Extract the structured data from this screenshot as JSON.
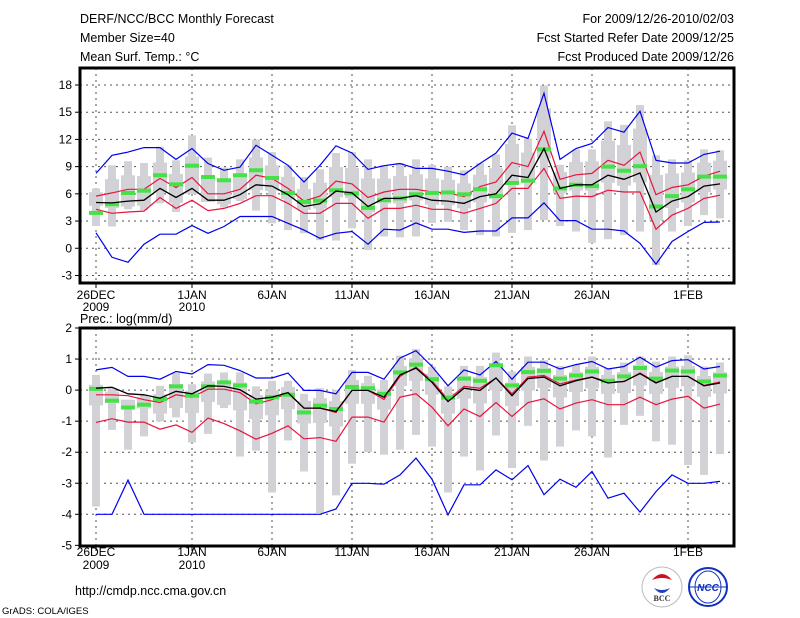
{
  "header": {
    "title": "DERF/NCC/BCC Monthly Forecast",
    "member_size": "Member Size=40",
    "variable": "Mean Surf. Temp.: °C",
    "period": "For 2009/12/26-2010/02/03",
    "start_date": "Fcst Started Refer Date 2009/12/25",
    "produced_date": "Fcst Produced Date 2009/12/26"
  },
  "footer": {
    "url": "http://cmdp.ncc.cma.gov.cn",
    "credit": "GrADS: COLA/IGES",
    "logo_bcc": "BCC",
    "logo_ncc": "NCC"
  },
  "colors": {
    "box": "#d2d2d6",
    "median": "#44e244",
    "mean": "#000000",
    "spread": "#e8143c",
    "extreme": "#0000ee"
  },
  "chart_data": [
    {
      "type": "line",
      "title": "Mean Surf. Temp.: °C",
      "ylabel": "°C",
      "ylim": [
        -4.5,
        19.5
      ],
      "yticks": [
        18,
        15,
        12,
        9,
        6,
        3,
        0,
        -3
      ],
      "xticks": [
        {
          "day": 0,
          "label": "26DEC",
          "sub": "2009"
        },
        {
          "day": 6,
          "label": "1JAN",
          "sub": "2010"
        },
        {
          "day": 11,
          "label": "6JAN",
          "sub": ""
        },
        {
          "day": 16,
          "label": "11JAN",
          "sub": ""
        },
        {
          "day": 21,
          "label": "16JAN",
          "sub": ""
        },
        {
          "day": 26,
          "label": "21JAN",
          "sub": ""
        },
        {
          "day": 31,
          "label": "26JAN",
          "sub": ""
        },
        {
          "day": 37,
          "label": "1FEB",
          "sub": ""
        }
      ],
      "grid": true,
      "series": {
        "mean": [
          5.05,
          5.0,
          5.2,
          5.3,
          6.6,
          5.6,
          6.6,
          5.3,
          5.3,
          5.9,
          7.0,
          6.85,
          5.9,
          4.6,
          4.9,
          6.3,
          6.1,
          4.6,
          5.5,
          5.5,
          5.8,
          5.3,
          5.2,
          4.95,
          5.7,
          6.0,
          8.05,
          7.8,
          11.0,
          6.6,
          7.0,
          7.0,
          8.05,
          7.6,
          8.3,
          4.0,
          5.2,
          5.7,
          6.85,
          7.1
        ],
        "upper": [
          5.75,
          6.1,
          6.5,
          6.5,
          7.7,
          6.7,
          7.8,
          6.0,
          6.0,
          6.5,
          8.05,
          7.7,
          6.6,
          5.2,
          5.75,
          7.4,
          7.1,
          5.6,
          6.2,
          6.5,
          6.5,
          6.2,
          6.1,
          5.7,
          6.8,
          7.3,
          9.45,
          9.0,
          12.9,
          7.6,
          8.1,
          8.25,
          9.7,
          9.15,
          10.6,
          5.9,
          6.7,
          7.0,
          7.95,
          8.5
        ],
        "lower": [
          4.3,
          3.85,
          4.0,
          4.1,
          5.6,
          4.4,
          5.3,
          4.15,
          4.4,
          4.95,
          5.8,
          5.8,
          4.95,
          3.85,
          3.85,
          4.95,
          4.95,
          3.3,
          4.4,
          4.4,
          4.75,
          4.3,
          4.3,
          3.85,
          4.4,
          4.95,
          6.6,
          6.6,
          8.8,
          5.5,
          5.75,
          5.7,
          6.4,
          6.2,
          6.2,
          2.1,
          3.65,
          4.4,
          5.5,
          5.85
        ],
        "max": [
          8.25,
          10.25,
          10.6,
          11.1,
          11.1,
          9.8,
          11.0,
          9.35,
          8.6,
          8.95,
          11.35,
          10.25,
          9.15,
          7.3,
          9.15,
          11.3,
          10.5,
          8.7,
          9.1,
          9.35,
          8.8,
          8.8,
          8.5,
          8.1,
          9.35,
          10.5,
          12.7,
          12.1,
          17.1,
          9.8,
          11.0,
          11.55,
          13.3,
          12.8,
          15.1,
          9.7,
          9.4,
          9.4,
          10.35,
          10.7
        ],
        "min": [
          1.7,
          -1.0,
          -1.55,
          0.45,
          1.55,
          1.55,
          2.5,
          1.65,
          2.4,
          3.5,
          3.5,
          3.5,
          2.75,
          2.0,
          1.1,
          1.65,
          1.85,
          0.45,
          2.1,
          2.0,
          2.8,
          2.1,
          2.1,
          1.75,
          1.9,
          1.9,
          3.35,
          3.35,
          5.0,
          3.05,
          3.05,
          2.1,
          2.1,
          1.9,
          0.55,
          -1.75,
          0.75,
          1.85,
          2.85,
          2.9
        ],
        "median": [
          3.9,
          4.85,
          6.1,
          6.35,
          8.05,
          7.05,
          9.1,
          7.85,
          7.5,
          8.05,
          8.6,
          7.75,
          6.1,
          5.1,
          5.25,
          6.4,
          6.05,
          4.45,
          5.3,
          5.5,
          5.95,
          6.1,
          6.15,
          5.95,
          6.5,
          5.75,
          7.2,
          7.45,
          10.9,
          6.6,
          7.0,
          6.85,
          9.0,
          8.55,
          9.05,
          4.6,
          5.75,
          6.5,
          7.9,
          7.9
        ],
        "box_high": [
          6.6,
          9.15,
          9.6,
          9.4,
          11.2,
          9.7,
          12.45,
          10.0,
          8.9,
          9.8,
          12.0,
          10.6,
          9.15,
          7.85,
          8.7,
          10.5,
          10.6,
          9.8,
          9.15,
          9.4,
          9.8,
          9.2,
          9.0,
          8.6,
          9.4,
          10.35,
          13.55,
          12.1,
          17.95,
          9.2,
          10.9,
          10.9,
          14.0,
          13.6,
          15.8,
          10.25,
          9.8,
          9.7,
          10.9,
          10.8
        ],
        "box_low": [
          2.45,
          2.4,
          4.3,
          4.2,
          4.95,
          4.0,
          6.0,
          5.1,
          4.5,
          5.2,
          4.15,
          2.75,
          2.0,
          1.65,
          0.9,
          0.85,
          2.2,
          -0.2,
          1.3,
          1.2,
          1.3,
          2.8,
          2.9,
          2.0,
          1.45,
          1.3,
          1.7,
          2.0,
          3.1,
          2.45,
          1.85,
          0.6,
          1.0,
          1.45,
          1.85,
          -1.85,
          1.85,
          2.45,
          3.65,
          3.3
        ]
      }
    },
    {
      "type": "line",
      "title": "Prec.: log(mm/d)",
      "ylabel": "log(mm/d)",
      "ylim": [
        -5,
        2
      ],
      "yticks": [
        2,
        1,
        0,
        -1,
        -2,
        -3,
        -4,
        -5
      ],
      "xticks": [
        {
          "day": 0,
          "label": "26DEC",
          "sub": "2009"
        },
        {
          "day": 6,
          "label": "1JAN",
          "sub": "2010"
        },
        {
          "day": 11,
          "label": "6JAN",
          "sub": ""
        },
        {
          "day": 16,
          "label": "11JAN",
          "sub": ""
        },
        {
          "day": 21,
          "label": "16JAN",
          "sub": ""
        },
        {
          "day": 26,
          "label": "21JAN",
          "sub": ""
        },
        {
          "day": 31,
          "label": "26JAN",
          "sub": ""
        },
        {
          "day": 37,
          "label": "1FEB",
          "sub": ""
        }
      ],
      "grid": true,
      "series": {
        "mean": [
          0.06,
          0.09,
          -0.12,
          -0.15,
          -0.26,
          -0.04,
          -0.12,
          0.14,
          0.12,
          0.01,
          -0.29,
          -0.23,
          -0.08,
          -0.58,
          -0.58,
          -0.69,
          -0.01,
          -0.01,
          -0.23,
          0.49,
          0.71,
          0.25,
          -0.37,
          0.06,
          -0.01,
          0.39,
          -0.18,
          0.37,
          0.42,
          0.14,
          0.3,
          0.42,
          0.23,
          0.28,
          0.53,
          0.23,
          0.44,
          0.44,
          0.14,
          0.23
        ],
        "upper": [
          -0.15,
          -0.15,
          -0.18,
          -0.31,
          -0.4,
          -0.15,
          -0.23,
          0.03,
          0.03,
          -0.08,
          -0.44,
          -0.31,
          -0.1,
          -0.58,
          -0.58,
          -0.72,
          -0.01,
          -0.01,
          -0.3,
          0.44,
          0.74,
          0.3,
          -0.31,
          0.12,
          0.06,
          0.39,
          -0.12,
          0.42,
          0.47,
          0.2,
          0.33,
          0.42,
          0.27,
          0.27,
          0.55,
          0.25,
          0.44,
          0.44,
          0.15,
          0.26
        ],
        "lower": [
          -1.04,
          -0.92,
          -1.03,
          -1.03,
          -1.26,
          -1.12,
          -1.36,
          -0.9,
          -1.08,
          -1.31,
          -1.58,
          -1.39,
          -1.15,
          -1.57,
          -1.53,
          -1.65,
          -0.87,
          -0.87,
          -1.03,
          -0.23,
          -0.12,
          -0.55,
          -1.15,
          -0.61,
          -0.85,
          -0.4,
          -0.85,
          -0.4,
          -0.28,
          -0.61,
          -0.42,
          -0.31,
          -0.47,
          -0.47,
          -0.23,
          -0.47,
          -0.29,
          -0.2,
          -0.58,
          -0.45
        ],
        "max": [
          0.65,
          0.73,
          0.44,
          0.44,
          0.35,
          0.6,
          0.52,
          0.82,
          0.8,
          0.63,
          0.39,
          0.39,
          0.55,
          -0.01,
          -0.01,
          -0.12,
          0.57,
          0.57,
          0.35,
          1.03,
          1.27,
          0.76,
          0.14,
          0.65,
          0.49,
          0.92,
          0.35,
          0.9,
          0.9,
          0.68,
          0.82,
          0.92,
          0.68,
          0.76,
          1.06,
          0.74,
          0.95,
          0.98,
          0.68,
          0.76
        ],
        "min": [
          -4,
          -4,
          -2.9,
          -4,
          -4,
          -4,
          -4,
          -4,
          -4,
          -4,
          -4,
          -4,
          -4,
          -4,
          -4,
          -3.83,
          -3.0,
          -3.0,
          -3.03,
          -2.73,
          -2.19,
          -2.87,
          -4.02,
          -3.05,
          -3.05,
          -2.57,
          -2.89,
          -2.43,
          -3.37,
          -2.87,
          -3.13,
          -2.62,
          -3.48,
          -3.32,
          -3.93,
          -3.27,
          -2.73,
          -3.0,
          -3.0,
          -2.94
        ],
        "median": [
          0.04,
          -0.34,
          -0.56,
          -0.47,
          -0.29,
          0.12,
          -0.18,
          0.12,
          0.25,
          0.15,
          -0.37,
          -0.23,
          -0.15,
          -0.72,
          -0.5,
          -0.61,
          0.1,
          0.06,
          -0.12,
          0.57,
          0.82,
          0.35,
          -0.24,
          0.37,
          0.3,
          0.8,
          0.15,
          0.58,
          0.62,
          0.37,
          0.47,
          0.6,
          0.3,
          0.44,
          0.71,
          0.37,
          0.63,
          0.6,
          0.28,
          0.47
        ],
        "box_high": [
          0.49,
          0.06,
          -0.31,
          -0.15,
          0.14,
          0.55,
          0.19,
          0.53,
          0.57,
          0.57,
          0.12,
          0.3,
          0.3,
          -0.12,
          0.06,
          0.01,
          0.65,
          0.46,
          0.33,
          1.11,
          1.32,
          0.76,
          0.12,
          0.78,
          0.78,
          1.21,
          0.6,
          1.08,
          0.96,
          0.78,
          0.82,
          1.08,
          0.71,
          0.89,
          1.08,
          0.92,
          1.08,
          1.12,
          0.76,
          0.89
        ],
        "box_low": [
          -3.75,
          -1.28,
          -1.92,
          -1.49,
          -1.01,
          -0.88,
          -1.69,
          -1.41,
          -0.58,
          -2.14,
          -1.95,
          -3.3,
          -1.62,
          -2.62,
          -3.96,
          -3.39,
          -2.37,
          -2.0,
          -2.08,
          -1.92,
          -1.44,
          -1.82,
          -3.3,
          -2.14,
          -2.59,
          -1.46,
          -2.51,
          -1.15,
          -2.27,
          -1.82,
          -1.3,
          -1.49,
          -2.17,
          -1.12,
          -0.83,
          -1.65,
          -1.76,
          -2.41,
          -2.73,
          -2.06
        ]
      }
    }
  ]
}
